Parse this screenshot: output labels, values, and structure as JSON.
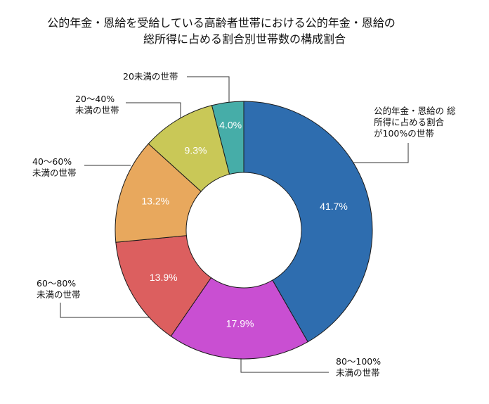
{
  "title": {
    "line1": "公的年金・恩給を受給している高齢者世帯における公的年金・恩給の",
    "line2": "総所得に占める割合別世帯数の構成割合"
  },
  "chart_data": {
    "type": "pie",
    "subtype": "donut",
    "title": "公的年金・恩給を受給している高齢者世帯における公的年金・恩給の総所得に占める割合別世帯数の構成割合",
    "start_angle": "12 o'clock, clockwise",
    "unit": "%",
    "slices": [
      {
        "label": "公的年金・恩給の 総所得に占める割合が100%の世帯",
        "value": 41.7,
        "value_label": "41.7%",
        "color": "#2E6DAF"
      },
      {
        "label": "80〜100%未満の世帯",
        "value": 17.9,
        "value_label": "17.9%",
        "color": "#C94FD2"
      },
      {
        "label": "60〜80%未満の世帯",
        "value": 13.9,
        "value_label": "13.9%",
        "color": "#DC5F5F"
      },
      {
        "label": "40〜60%未満の世帯",
        "value": 13.2,
        "value_label": "13.2%",
        "color": "#E8A85D"
      },
      {
        "label": "20〜40%未満の世帯",
        "value": 9.3,
        "value_label": "9.3%",
        "color": "#C9C857"
      },
      {
        "label": "20未満の世帯",
        "value": 4.0,
        "value_label": "4.0%",
        "color": "#46ADA8"
      }
    ]
  },
  "labels": {
    "s100": {
      "l1": "公的年金・恩給の 総",
      "l2": "所得に占める割合",
      "l3": "が100%の世帯"
    },
    "s80": {
      "l1": "80〜100%",
      "l2": "未満の世帯"
    },
    "s60": {
      "l1": "60〜80%",
      "l2": "未満の世帯"
    },
    "s40": {
      "l1": "40〜60%",
      "l2": "未満の世帯"
    },
    "s20": {
      "l1": "20〜40%",
      "l2": "未満の世帯"
    },
    "s0": {
      "l1": "20未満の世帯"
    }
  }
}
